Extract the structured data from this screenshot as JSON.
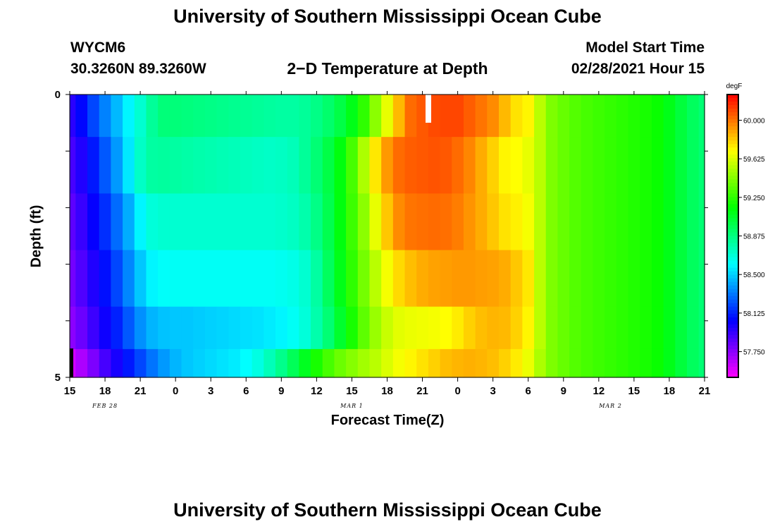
{
  "header": {
    "title": "University of Southern Mississippi Ocean Cube",
    "station_id": "WYCM6",
    "coordinates": "30.3260N 89.3260W",
    "plot_title": "2−D Temperature at Depth",
    "model_start_label": "Model Start Time",
    "model_start_value": "02/28/2021 Hour 15"
  },
  "footer": {
    "title": "University of Southern Mississippi Ocean Cube"
  },
  "chart_data": {
    "type": "heatmap",
    "title": "2−D Temperature at Depth",
    "xlabel": "Forecast Time(Z)",
    "ylabel": "Depth (ft)",
    "units": "degF",
    "xlim": [
      0,
      54
    ],
    "ylim": [
      0,
      5
    ],
    "x_tick_labels": [
      "15",
      "18",
      "21",
      "0",
      "3",
      "6",
      "9",
      "12",
      "15",
      "18",
      "21",
      "0",
      "3",
      "6",
      "9",
      "12",
      "15",
      "18",
      "21"
    ],
    "date_labels": [
      {
        "hour": 3,
        "label": "FEB 28"
      },
      {
        "hour": 24,
        "label": "MAR 1"
      },
      {
        "hour": 46,
        "label": "MAR 2"
      }
    ],
    "y_tick_labels": [
      "0",
      "5"
    ],
    "colorbar_ticks": [
      "60.000",
      "59.625",
      "59.250",
      "58.875",
      "58.500",
      "58.125",
      "57.750"
    ],
    "colorbar_range": [
      57.5,
      60.25
    ],
    "depth_layers": [
      0.25,
      1.25,
      2.25,
      3.25,
      4.25,
      4.75
    ],
    "hours": [
      0,
      1,
      2,
      3,
      4,
      5,
      6,
      7,
      8,
      9,
      10,
      11,
      12,
      13,
      14,
      15,
      16,
      17,
      18,
      19,
      20,
      21,
      22,
      23,
      24,
      25,
      26,
      27,
      28,
      29,
      30,
      31,
      32,
      33,
      34,
      35,
      36,
      37,
      38,
      39,
      40,
      41,
      42,
      43,
      44,
      45,
      46,
      47,
      48,
      49,
      50,
      51,
      52,
      53,
      54
    ],
    "temperature_rows": [
      [
        57.96,
        58.06,
        58.2,
        58.33,
        58.45,
        58.58,
        58.7,
        58.82,
        58.89,
        58.89,
        58.88,
        58.87,
        58.86,
        58.85,
        58.84,
        58.83,
        58.82,
        58.81,
        58.8,
        58.8,
        58.82,
        58.86,
        58.92,
        59.0,
        59.1,
        59.25,
        59.45,
        59.65,
        59.85,
        60.02,
        60.06,
        60.09,
        60.1,
        60.1,
        60.05,
        60.0,
        59.95,
        59.85,
        59.76,
        59.72,
        59.55,
        59.42,
        59.37,
        59.33,
        59.3,
        59.28,
        59.26,
        59.24,
        59.22,
        59.2,
        59.17,
        59.1,
        59.02,
        58.95,
        58.9
      ],
      [
        57.9,
        57.98,
        58.1,
        58.24,
        58.38,
        58.55,
        58.72,
        58.8,
        58.81,
        58.8,
        58.79,
        58.78,
        58.77,
        58.76,
        58.75,
        58.74,
        58.73,
        58.72,
        58.73,
        58.75,
        58.82,
        58.9,
        59.0,
        59.12,
        59.3,
        59.52,
        59.75,
        59.92,
        60.02,
        60.05,
        60.06,
        60.07,
        60.06,
        60.02,
        59.96,
        59.88,
        59.8,
        59.72,
        59.7,
        59.65,
        59.55,
        59.42,
        59.37,
        59.33,
        59.3,
        59.28,
        59.26,
        59.24,
        59.22,
        59.2,
        59.17,
        59.1,
        59.02,
        58.95,
        58.9
      ],
      [
        57.85,
        57.93,
        58.04,
        58.15,
        58.28,
        58.42,
        58.58,
        58.68,
        58.7,
        58.7,
        58.7,
        58.7,
        58.7,
        58.7,
        58.7,
        58.7,
        58.7,
        58.7,
        58.71,
        58.73,
        58.78,
        58.86,
        58.98,
        59.12,
        59.28,
        59.45,
        59.65,
        59.82,
        59.95,
        60.0,
        60.01,
        60.02,
        60.01,
        59.98,
        59.93,
        59.88,
        59.82,
        59.76,
        59.73,
        59.68,
        59.55,
        59.42,
        59.37,
        59.33,
        59.3,
        59.28,
        59.26,
        59.24,
        59.22,
        59.2,
        59.17,
        59.1,
        59.02,
        58.95,
        58.9
      ],
      [
        57.8,
        57.88,
        57.98,
        58.08,
        58.2,
        58.34,
        58.48,
        58.58,
        58.61,
        58.62,
        58.62,
        58.62,
        58.62,
        58.62,
        58.62,
        58.62,
        58.62,
        58.62,
        58.63,
        58.65,
        58.7,
        58.8,
        58.95,
        59.1,
        59.25,
        59.4,
        59.55,
        59.68,
        59.78,
        59.84,
        59.88,
        59.9,
        59.91,
        59.92,
        59.92,
        59.91,
        59.9,
        59.88,
        59.82,
        59.75,
        59.55,
        59.42,
        59.37,
        59.33,
        59.3,
        59.28,
        59.26,
        59.24,
        59.22,
        59.2,
        59.17,
        59.1,
        59.02,
        58.95,
        58.9
      ],
      [
        57.75,
        57.82,
        57.92,
        58.02,
        58.12,
        58.24,
        58.36,
        58.44,
        58.47,
        58.48,
        58.48,
        58.49,
        58.5,
        58.51,
        58.52,
        58.53,
        58.54,
        58.56,
        58.58,
        58.62,
        58.68,
        58.78,
        58.9,
        59.05,
        59.2,
        59.35,
        59.48,
        59.58,
        59.64,
        59.66,
        59.67,
        59.68,
        59.7,
        59.74,
        59.8,
        59.84,
        59.86,
        59.85,
        59.8,
        59.72,
        59.55,
        59.42,
        59.37,
        59.33,
        59.3,
        59.28,
        59.26,
        59.24,
        59.22,
        59.2,
        59.17,
        59.1,
        59.02,
        58.95,
        58.9
      ],
      [
        57.6,
        57.68,
        57.78,
        57.9,
        58.0,
        58.1,
        58.2,
        58.3,
        58.38,
        58.44,
        58.48,
        58.5,
        58.52,
        58.54,
        58.56,
        58.6,
        58.66,
        58.75,
        58.85,
        58.96,
        59.08,
        59.2,
        59.3,
        59.38,
        59.44,
        59.5,
        59.55,
        59.62,
        59.68,
        59.72,
        59.76,
        59.8,
        59.84,
        59.86,
        59.87,
        59.86,
        59.84,
        59.8,
        59.74,
        59.66,
        59.52,
        59.42,
        59.37,
        59.33,
        59.3,
        59.28,
        59.26,
        59.24,
        59.22,
        59.2,
        59.17,
        59.1,
        59.02,
        58.95,
        58.9
      ]
    ]
  }
}
